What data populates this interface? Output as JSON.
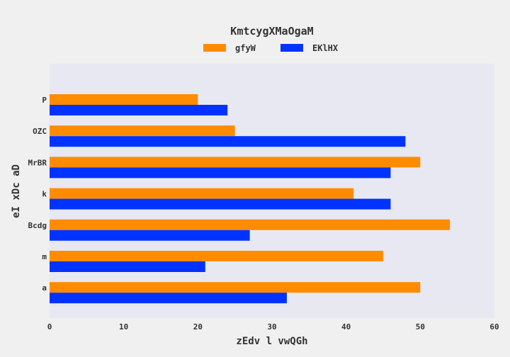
{
  "chart_data": {
    "type": "bar",
    "orientation": "horizontal",
    "title": "KmtcygXMaOgaM",
    "xlabel": "zEdv l vwQGh",
    "ylabel": "eI xDc aD",
    "categories": [
      "P",
      "OZC",
      "MrBR",
      "k",
      "Bcdg",
      "m",
      "a"
    ],
    "series": [
      {
        "name": "gfyW",
        "color": "#ff8c00",
        "values": [
          20,
          25,
          50,
          41,
          54,
          45,
          50
        ]
      },
      {
        "name": "EKlHX",
        "color": "#0033ff",
        "values": [
          24,
          48,
          46,
          46,
          27,
          21,
          32
        ]
      }
    ],
    "xlim": [
      0,
      60
    ],
    "xticks": [
      0,
      10,
      20,
      30,
      40,
      50,
      60
    ],
    "grid": false,
    "legend_position": "top-center",
    "plot_background": "#e8e8f2",
    "page_background": "#f0f0f0"
  }
}
